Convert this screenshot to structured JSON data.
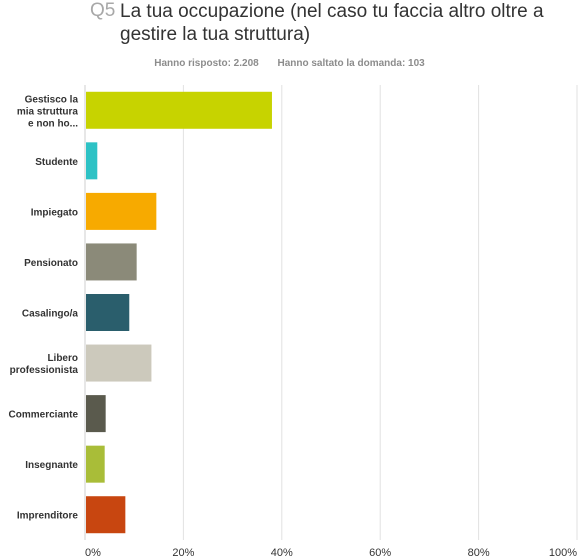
{
  "question": {
    "number": "Q5",
    "title": "La tua occupazione (nel caso tu faccia altro oltre a gestire la tua struttura)"
  },
  "stats": {
    "answered": "Hanno risposto: 2.208",
    "skipped": "Hanno saltato la domanda: 103"
  },
  "chart_data": {
    "type": "bar",
    "orientation": "horizontal",
    "categories": [
      [
        "Gestisco la",
        "mia struttura",
        "e non ho..."
      ],
      [
        "Studente"
      ],
      [
        "Impiegato"
      ],
      [
        "Pensionato"
      ],
      [
        "Casalingo/a"
      ],
      [
        "Libero",
        "professionista"
      ],
      [
        "Commerciante"
      ],
      [
        "Insegnante"
      ],
      [
        "Imprenditore"
      ]
    ],
    "values": [
      38,
      2.5,
      14.5,
      10.5,
      9,
      13.5,
      4.2,
      4,
      8.2
    ],
    "colors": [
      "#c7d300",
      "#2dc2c5",
      "#f7aa00",
      "#8b8a79",
      "#2a5e6c",
      "#ccc9bc",
      "#5a5a4d",
      "#a9bd38",
      "#c84610"
    ],
    "xlim": [
      0,
      100
    ],
    "ticks": [
      "0%",
      "20%",
      "40%",
      "60%",
      "80%",
      "100%"
    ],
    "grid": true
  }
}
